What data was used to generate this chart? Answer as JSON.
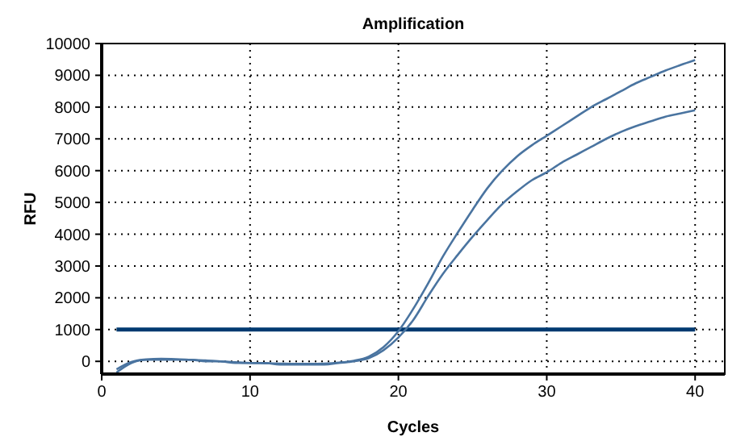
{
  "chart_data": {
    "type": "line",
    "title": "Amplification",
    "xlabel": "Cycles",
    "ylabel": "RFU",
    "x": [
      1,
      2,
      3,
      4,
      5,
      6,
      7,
      8,
      9,
      10,
      11,
      12,
      13,
      14,
      15,
      16,
      17,
      18,
      19,
      20,
      21,
      22,
      23,
      24,
      25,
      26,
      27,
      28,
      29,
      30,
      31,
      32,
      33,
      34,
      35,
      36,
      37,
      38,
      39,
      40
    ],
    "series": [
      {
        "color": "#4a74a0",
        "values": [
          -250,
          -20,
          60,
          80,
          70,
          50,
          30,
          0,
          -30,
          -50,
          -60,
          -70,
          -80,
          -80,
          -70,
          -40,
          20,
          150,
          450,
          950,
          1650,
          2450,
          3300,
          4050,
          4770,
          5450,
          6000,
          6450,
          6800,
          7100,
          7400,
          7700,
          8000,
          8250,
          8500,
          8750,
          8950,
          9150,
          9320,
          9480
        ]
      },
      {
        "color": "#4a74a0",
        "values": [
          -350,
          -50,
          50,
          50,
          50,
          50,
          0,
          0,
          -50,
          -50,
          -50,
          -100,
          -100,
          -100,
          -100,
          -50,
          0,
          100,
          350,
          750,
          1300,
          2050,
          2750,
          3350,
          3920,
          4450,
          4950,
          5350,
          5700,
          5950,
          6250,
          6500,
          6750,
          7000,
          7220,
          7400,
          7550,
          7700,
          7800,
          7900
        ]
      }
    ],
    "xlim": [
      0,
      42
    ],
    "xticks": [
      0,
      10,
      20,
      30,
      40
    ],
    "ylim": [
      -400,
      10000
    ],
    "yticks": [
      0,
      1000,
      2000,
      3000,
      4000,
      5000,
      6000,
      7000,
      8000,
      9000,
      10000
    ],
    "ref_lines": [
      {
        "axis": "y",
        "value": 1000,
        "color": "#003a70"
      }
    ],
    "grid": true,
    "marker": "none",
    "line_style": "solid"
  }
}
